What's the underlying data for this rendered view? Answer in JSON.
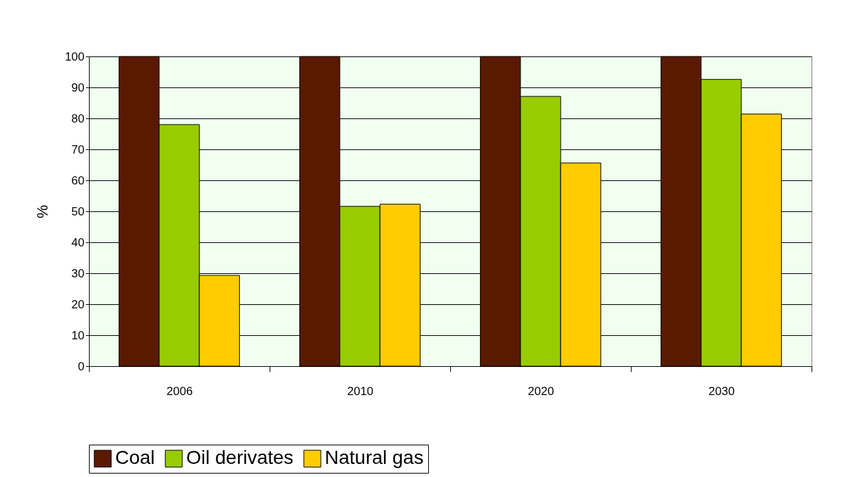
{
  "chart_data": {
    "type": "bar",
    "ylabel": "%",
    "categories": [
      "2006",
      "2010",
      "2020",
      "2030"
    ],
    "series": [
      {
        "name": "Coal",
        "color": "#5a1a00",
        "values": [
          100,
          100,
          100,
          100
        ]
      },
      {
        "name": "Oil derivates",
        "color": "#99cc00",
        "values": [
          78,
          51.6,
          87.1,
          92.6
        ]
      },
      {
        "name": "Natural gas",
        "color": "#ffcc00",
        "values": [
          29.3,
          52.3,
          65.6,
          81.4
        ]
      }
    ],
    "ylim": [
      0,
      100
    ],
    "yticks": [
      0,
      10,
      20,
      30,
      40,
      50,
      60,
      70,
      80,
      90,
      100
    ],
    "grid": "y",
    "legend": "bottom"
  }
}
